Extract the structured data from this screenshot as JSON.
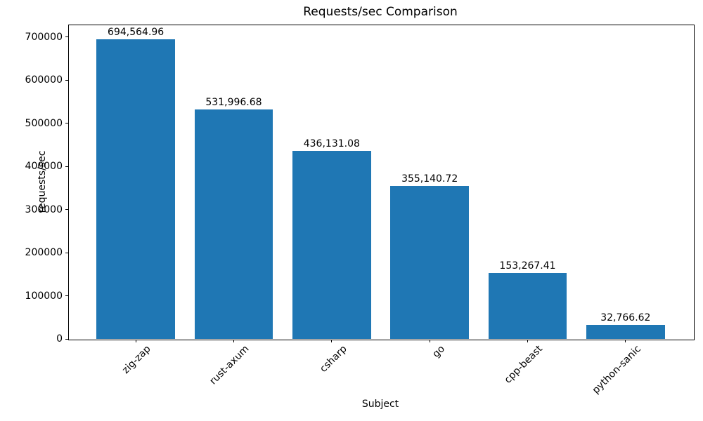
{
  "chart_data": {
    "type": "bar",
    "title": "Requests/sec Comparison",
    "xlabel": "Subject",
    "ylabel": "requests/sec",
    "categories": [
      "zig-zap",
      "rust-axum",
      "csharp",
      "go",
      "cpp-beast",
      "python-sanic"
    ],
    "values": [
      694564.96,
      531996.68,
      436131.08,
      355140.72,
      153267.41,
      32766.62
    ],
    "value_labels": [
      "694,564.96",
      "531,996.68",
      "436,131.08",
      "355,140.72",
      "153,267.41",
      "32,766.62"
    ],
    "ytick_values": [
      0,
      100000,
      200000,
      300000,
      400000,
      500000,
      600000,
      700000
    ],
    "ytick_labels": [
      "0",
      "100000",
      "200000",
      "300000",
      "400000",
      "500000",
      "600000",
      "700000"
    ],
    "ylim": [
      0,
      729293
    ],
    "xlim": [
      -0.69,
      5.69
    ],
    "bar_width_units": 0.8,
    "bar_color": "#1f77b4",
    "grid": false,
    "legend_position": "none"
  }
}
